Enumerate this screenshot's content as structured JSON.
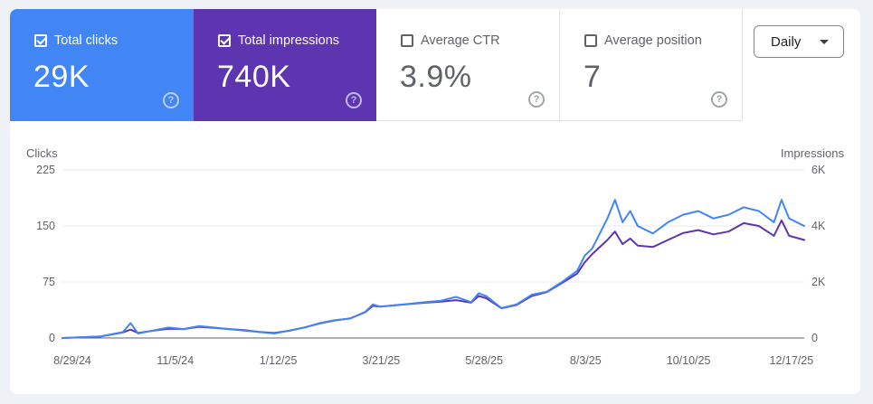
{
  "metrics": [
    {
      "label": "Total clicks",
      "value": "29K",
      "checked": true
    },
    {
      "label": "Total impressions",
      "value": "740K",
      "checked": true
    },
    {
      "label": "Average CTR",
      "value": "3.9%",
      "checked": false
    },
    {
      "label": "Average position",
      "value": "7",
      "checked": false
    }
  ],
  "help_glyph": "?",
  "granularity": {
    "selected": "Daily"
  },
  "colors": {
    "clicks": "#4285f4",
    "impressions": "#5e35b1",
    "grid": "#e8eaed"
  },
  "chart_data": {
    "type": "line",
    "left_axis_label": "Clicks",
    "right_axis_label": "Impressions",
    "left_ticks": [
      "0",
      "75",
      "150",
      "225"
    ],
    "right_ticks": [
      "0",
      "2K",
      "4K",
      "6K"
    ],
    "ylim_left": [
      0,
      225
    ],
    "ylim_right": [
      0,
      6000
    ],
    "x_ticks": [
      "8/29/24",
      "11/5/24",
      "1/12/25",
      "3/21/25",
      "5/28/25",
      "8/3/25",
      "10/10/25",
      "12/17/25"
    ],
    "x_tick_day_index": [
      0,
      68,
      136,
      204,
      272,
      339,
      407,
      475
    ],
    "series": [
      {
        "name": "Clicks",
        "axis": "left",
        "color": "#4285f4",
        "x_day_index": [
          0,
          25,
          40,
          45,
          50,
          60,
          70,
          80,
          90,
          100,
          110,
          120,
          130,
          140,
          150,
          160,
          170,
          180,
          190,
          200,
          205,
          210,
          220,
          230,
          240,
          250,
          260,
          270,
          275,
          280,
          290,
          300,
          310,
          320,
          330,
          340,
          345,
          350,
          360,
          365,
          370,
          375,
          380,
          390,
          400,
          410,
          420,
          430,
          440,
          450,
          460,
          470,
          475,
          480,
          490
        ],
        "values": [
          0,
          2,
          8,
          20,
          6,
          10,
          14,
          12,
          16,
          14,
          12,
          10,
          8,
          6,
          10,
          14,
          20,
          24,
          26,
          35,
          45,
          42,
          44,
          46,
          48,
          50,
          55,
          48,
          60,
          56,
          40,
          45,
          58,
          62,
          75,
          90,
          110,
          120,
          160,
          185,
          155,
          170,
          150,
          140,
          155,
          165,
          170,
          160,
          165,
          175,
          170,
          155,
          185,
          160,
          150
        ]
      },
      {
        "name": "Impressions",
        "axis": "right",
        "color": "#5e35b1",
        "x_day_index": [
          0,
          25,
          40,
          45,
          50,
          60,
          70,
          80,
          90,
          100,
          110,
          120,
          130,
          140,
          150,
          160,
          170,
          180,
          190,
          200,
          205,
          210,
          220,
          230,
          240,
          250,
          260,
          270,
          275,
          280,
          290,
          300,
          310,
          320,
          330,
          340,
          345,
          350,
          360,
          365,
          370,
          375,
          380,
          390,
          400,
          410,
          420,
          430,
          440,
          450,
          460,
          470,
          475,
          480,
          490
        ],
        "values": [
          0,
          50,
          200,
          300,
          180,
          260,
          330,
          320,
          400,
          360,
          320,
          280,
          220,
          180,
          260,
          380,
          520,
          630,
          700,
          920,
          1150,
          1120,
          1170,
          1220,
          1260,
          1300,
          1350,
          1260,
          1500,
          1420,
          1060,
          1180,
          1500,
          1640,
          1960,
          2300,
          2700,
          3000,
          3500,
          3800,
          3350,
          3550,
          3300,
          3250,
          3500,
          3750,
          3850,
          3700,
          3800,
          4100,
          4000,
          3650,
          4200,
          3650,
          3500
        ]
      }
    ]
  }
}
